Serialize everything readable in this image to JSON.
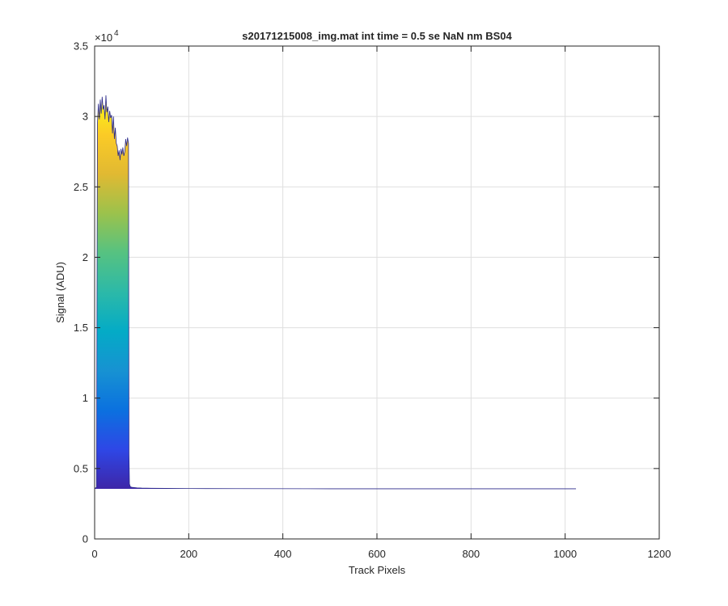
{
  "chart_data": {
    "type": "area",
    "title": "s20171215008_img.mat int time = 0.5 se  NaN nm BS04",
    "xlabel": "Track Pixels",
    "ylabel": "Signal (ADU)",
    "xlim": [
      0,
      1200
    ],
    "ylim": [
      0,
      35000
    ],
    "xticks": [
      0,
      200,
      400,
      600,
      800,
      1000,
      1200
    ],
    "xtick_labels": [
      "0",
      "200",
      "400",
      "600",
      "800",
      "1000",
      "1200"
    ],
    "yticks": [
      0,
      5000,
      10000,
      15000,
      20000,
      25000,
      30000,
      35000
    ],
    "ytick_labels": [
      "0",
      "0.5",
      "1",
      "1.5",
      "2",
      "2.5",
      "3",
      "3.5"
    ],
    "y_exponent_label": "×10",
    "y_exponent_power": "4",
    "grid": true,
    "colormap": "parula",
    "colormap_colors": [
      "#3e26a8",
      "#2e47e6",
      "#0b71df",
      "#1792d2",
      "#04abc6",
      "#2cb9a8",
      "#56c281",
      "#9bc24c",
      "#e1b932",
      "#fbcb26",
      "#f9fb14"
    ],
    "series": [
      {
        "x": [
          0,
          4,
          6,
          8,
          10,
          12,
          14,
          16,
          18,
          20,
          22,
          24,
          26,
          28,
          30,
          32,
          34,
          36,
          38,
          40,
          42,
          44,
          46,
          48,
          50,
          52,
          54,
          56,
          58,
          60,
          62,
          64,
          66,
          68,
          70,
          72,
          73,
          74,
          76,
          80,
          90,
          100,
          120,
          150,
          200,
          300,
          500,
          700,
          900,
          1023
        ],
        "y": [
          3600,
          3650,
          29500,
          30900,
          29800,
          31200,
          30200,
          31400,
          30500,
          30800,
          29800,
          31500,
          30300,
          30700,
          29600,
          30400,
          29900,
          30100,
          28800,
          30000,
          28400,
          29200,
          28100,
          27900,
          27200,
          27600,
          26900,
          27700,
          27300,
          27800,
          27200,
          27500,
          28400,
          27900,
          28500,
          28100,
          6000,
          3900,
          3700,
          3660,
          3630,
          3610,
          3600,
          3590,
          3580,
          3570,
          3560,
          3560,
          3560,
          3560
        ]
      }
    ]
  }
}
